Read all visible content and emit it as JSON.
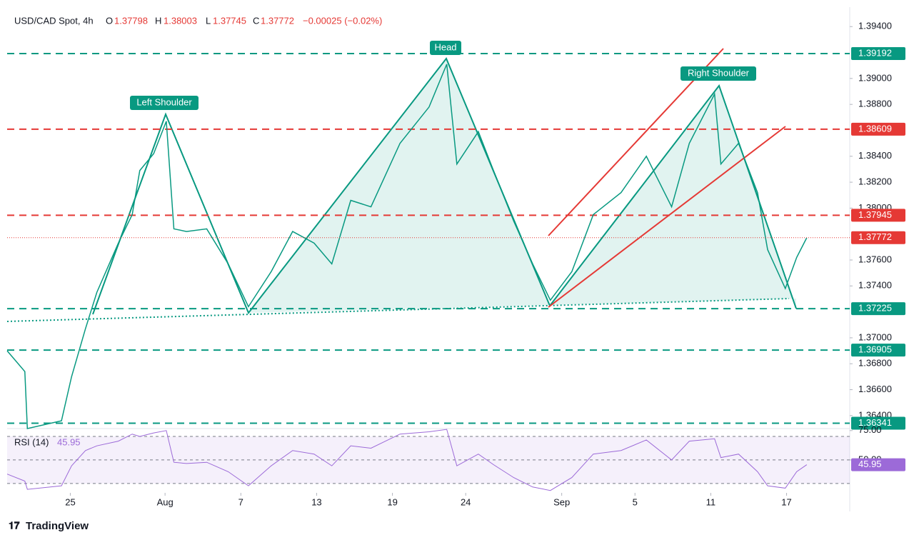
{
  "header": {
    "symbol": "USD/CAD Spot, 4h",
    "o_label": "O",
    "open": "1.37798",
    "h_label": "H",
    "high": "1.38003",
    "l_label": "L",
    "low": "1.37745",
    "c_label": "C",
    "close": "1.37772",
    "change": "−0.00025 (−0.02%)"
  },
  "pattern_labels": {
    "left": "Left Shoulder",
    "head": "Head",
    "right": "Right Shoulder"
  },
  "footer": "TradingView",
  "chart_data": [
    {
      "type": "line",
      "name": "price",
      "color": "#089981",
      "x": [
        -5,
        -3.6,
        -3.4,
        -0.7,
        0.1,
        1.2,
        2.1,
        3.8,
        4.9,
        5.5,
        6.6,
        7.6,
        8.2,
        9.2,
        10.8,
        12.5,
        14.1,
        15.9,
        17.6,
        19.3,
        20.7,
        22.2,
        23.8,
        26.1,
        28.4,
        29.8,
        30.6,
        32.3,
        33.5,
        35.1,
        36.6,
        38,
        39.7,
        41.4,
        43.6,
        45.6,
        47.6,
        49,
        51,
        51.5,
        52.9,
        54.4,
        55.2,
        56.6,
        57.5,
        58.3
      ],
      "values": [
        1.369,
        1.3674,
        1.363,
        1.3636,
        1.367,
        1.3707,
        1.3735,
        1.3773,
        1.3795,
        1.3829,
        1.3842,
        1.3867,
        1.3784,
        1.3782,
        1.3784,
        1.3757,
        1.3724,
        1.3751,
        1.3782,
        1.3773,
        1.3757,
        1.3806,
        1.3801,
        1.385,
        1.3878,
        1.3911,
        1.3834,
        1.3859,
        1.3829,
        1.379,
        1.3757,
        1.3729,
        1.3751,
        1.3795,
        1.3812,
        1.384,
        1.3801,
        1.385,
        1.3888,
        1.3834,
        1.385,
        1.3812,
        1.3768,
        1.3738,
        1.3762,
        1.37772
      ],
      "xlim": [
        -5,
        61.7
      ],
      "xticks": [
        {
          "value": 0,
          "label": "25"
        },
        {
          "value": 7.5,
          "label": "Aug"
        },
        {
          "value": 13.5,
          "label": "7"
        },
        {
          "value": 19.5,
          "label": "13"
        },
        {
          "value": 25.5,
          "label": "19"
        },
        {
          "value": 31.3,
          "label": "24"
        },
        {
          "value": 38.9,
          "label": "Sep"
        },
        {
          "value": 44.7,
          "label": "5"
        },
        {
          "value": 50.7,
          "label": "11"
        },
        {
          "value": 56.7,
          "label": "17"
        }
      ],
      "ylim": [
        1.363,
        1.3955
      ],
      "yticks": [
        {
          "value": 1.394,
          "label": "1.39400"
        },
        {
          "value": 1.39,
          "label": "1.39000"
        },
        {
          "value": 1.388,
          "label": "1.38800"
        },
        {
          "value": 1.384,
          "label": "1.38400"
        },
        {
          "value": 1.382,
          "label": "1.38200"
        },
        {
          "value": 1.38,
          "label": "1.38000"
        },
        {
          "value": 1.376,
          "label": "1.37600"
        },
        {
          "value": 1.374,
          "label": "1.37400"
        },
        {
          "value": 1.37,
          "label": "1.37000"
        },
        {
          "value": 1.368,
          "label": "1.36800"
        },
        {
          "value": 1.366,
          "label": "1.36600"
        },
        {
          "value": 1.364,
          "label": "1.36400"
        }
      ],
      "levels": [
        {
          "value": 1.39192,
          "color": "#089981"
        },
        {
          "value": 1.38609,
          "color": "#e53935"
        },
        {
          "value": 1.37945,
          "color": "#e53935"
        },
        {
          "value": 1.37225,
          "color": "#089981"
        },
        {
          "value": 1.36905,
          "color": "#089981"
        },
        {
          "value": 1.36341,
          "color": "#089981"
        }
      ],
      "last": {
        "value": 1.37772,
        "color": "#e53935"
      }
    },
    {
      "type": "line",
      "name": "RSI (14)",
      "color": "#9c6ad8",
      "x": [
        -5,
        -3.6,
        -3.4,
        -0.7,
        0.1,
        1.2,
        2.1,
        3.8,
        4.9,
        5.5,
        6.6,
        7.6,
        8.2,
        9.2,
        10.8,
        12.5,
        14.1,
        15.9,
        17.6,
        19.3,
        20.7,
        22.2,
        23.8,
        26.1,
        28.4,
        29.8,
        30.6,
        32.3,
        33.5,
        35.1,
        36.6,
        38,
        39.7,
        41.4,
        43.6,
        45.6,
        47.6,
        49,
        51,
        51.5,
        52.9,
        54.4,
        55.2,
        56.6,
        57.5,
        58.3
      ],
      "values": [
        38,
        32,
        25,
        28,
        45,
        58,
        62,
        66,
        72,
        70,
        73,
        75,
        48,
        47,
        48,
        40,
        28,
        45,
        58,
        55,
        45,
        62,
        60,
        72,
        74,
        76,
        45,
        55,
        46,
        35,
        27,
        24,
        35,
        55,
        58,
        67,
        50,
        66,
        68,
        52,
        55,
        40,
        28,
        26,
        40,
        45.95
      ],
      "xlim": [
        -5,
        61.7
      ],
      "ylim": [
        22,
        76.7
      ],
      "yticks": [
        {
          "value": 75,
          "label": "75.00"
        },
        {
          "value": 50,
          "label": "50.00"
        }
      ],
      "bands": [
        30,
        50,
        70
      ],
      "last": {
        "value": 45.95,
        "color": "#9c6ad8"
      }
    }
  ]
}
